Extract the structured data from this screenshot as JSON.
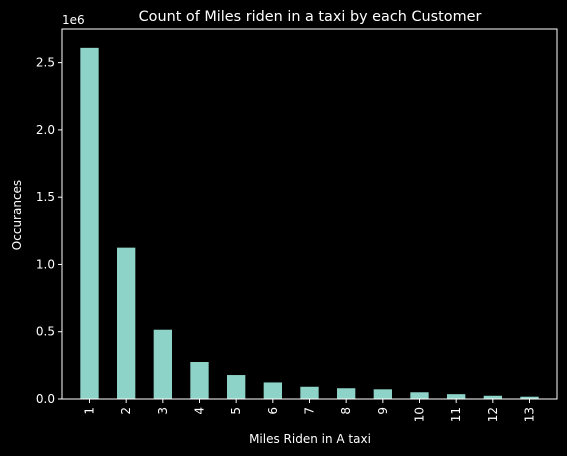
{
  "chart_data": {
    "type": "bar",
    "title": "Count of Miles riden in a taxi by each Customer",
    "xlabel": "Miles Riden in A taxi",
    "ylabel": "Occurances",
    "y_offset_text": "1e6",
    "y_tick_labels": [
      "0.0",
      "0.5",
      "1.0",
      "1.5",
      "2.0",
      "2.5"
    ],
    "y_tick_values": [
      0,
      500000,
      1000000,
      1500000,
      2000000,
      2500000
    ],
    "ylim": [
      0,
      2750000
    ],
    "categories": [
      "1",
      "2",
      "3",
      "4",
      "5",
      "6",
      "7",
      "8",
      "9",
      "10",
      "11",
      "12",
      "13"
    ],
    "values": [
      2610000,
      1125000,
      515000,
      275000,
      178000,
      123000,
      91000,
      80000,
      72000,
      50000,
      36000,
      24000,
      17000
    ],
    "grid": false,
    "legend": "none",
    "colors": {
      "background": "#000000",
      "bar": "#8dd3c7",
      "axes": "#ffffff",
      "text": "#ffffff"
    }
  }
}
